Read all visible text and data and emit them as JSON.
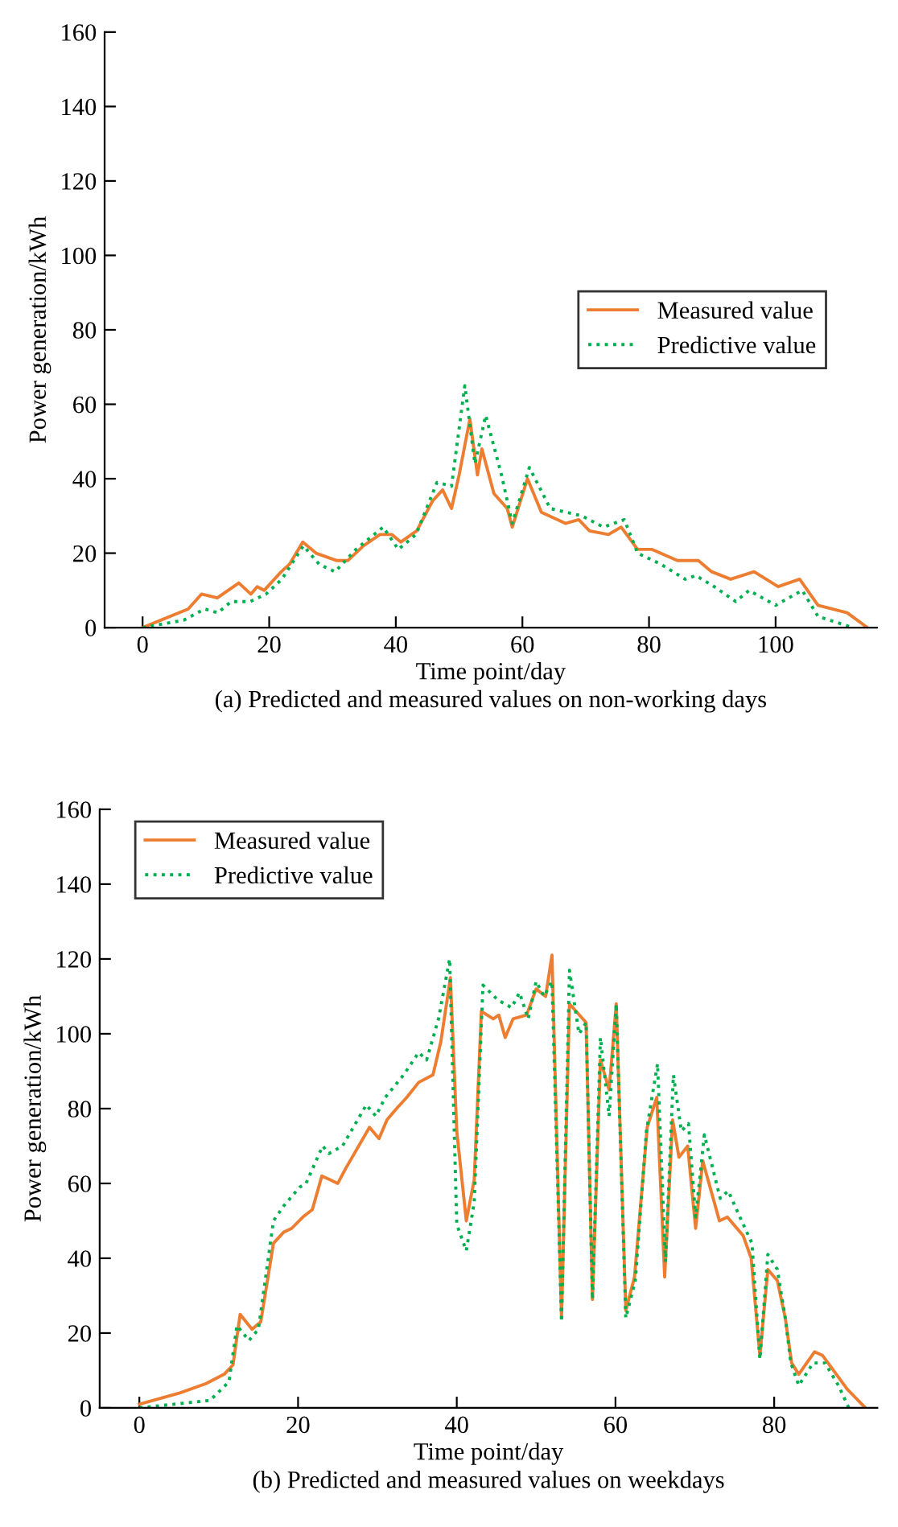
{
  "chart_data": [
    {
      "type": "line",
      "xlabel": "Time point/day",
      "ylabel": "Power generation/kWh",
      "annotations": [
        "(a) Predicted and measured values on non-working days"
      ],
      "xlim": [
        -6,
        116
      ],
      "ylim": [
        0,
        160
      ],
      "xticks": [
        0,
        20,
        40,
        60,
        80,
        100
      ],
      "yticks": [
        0,
        20,
        40,
        60,
        80,
        100,
        120,
        140,
        160
      ],
      "grid": false,
      "legend": "center right",
      "series": [
        {
          "name": "Measured value",
          "color": "#ed7d31",
          "line_style": "solid",
          "x": [
            0,
            7.2,
            9.3,
            11.8,
            15.2,
            17.1,
            18.1,
            19.2,
            21.9,
            23.2,
            25.3,
            27.4,
            30.7,
            32.4,
            34.9,
            37.5,
            39.4,
            40.8,
            43.3,
            45.8,
            47.4,
            48.8,
            50,
            51.7,
            52.9,
            53.6,
            55.5,
            57.6,
            58.4,
            60.8,
            63,
            66.8,
            68.9,
            70.6,
            73.6,
            75.6,
            78.2,
            80.5,
            84.5,
            87.8,
            89.9,
            92.9,
            96.6,
            100.4,
            103.8,
            106.7,
            111.3,
            114.5
          ],
          "values": [
            0,
            5,
            9,
            8,
            12,
            9,
            11,
            10,
            15,
            17,
            23,
            20,
            18,
            18,
            22,
            25,
            25,
            23,
            26,
            34,
            37,
            32,
            41,
            56,
            41,
            48,
            36,
            32,
            27,
            40,
            31,
            28,
            29,
            26,
            25,
            27,
            21,
            21,
            18,
            18,
            15,
            13,
            15,
            11,
            13,
            6,
            4,
            0
          ]
        },
        {
          "name": "Predictive value",
          "color": "#00b050",
          "line_style": "dotted",
          "x": [
            0,
            6.5,
            9.8,
            11.9,
            14,
            17,
            19.5,
            22,
            25.4,
            27.9,
            30.4,
            33.7,
            38,
            40.4,
            43.2,
            46.5,
            48.8,
            50.9,
            52.5,
            54.2,
            56.7,
            58.4,
            61.1,
            64.4,
            69.4,
            72.8,
            76.1,
            78.2,
            81.9,
            85.7,
            87.4,
            90.3,
            93.7,
            95.8,
            100,
            104.2,
            106.7,
            112.2
          ],
          "values": [
            0,
            2,
            5,
            4,
            7,
            7,
            9,
            13,
            22,
            17,
            15,
            21,
            27,
            21,
            25,
            39,
            38,
            65,
            44,
            57,
            41,
            28,
            43,
            32,
            30,
            27,
            29,
            20,
            17,
            13,
            14,
            11,
            7,
            10,
            6,
            10,
            3,
            0
          ]
        }
      ]
    },
    {
      "type": "line",
      "xlabel": "Time point/day",
      "ylabel": "Power generation/kWh",
      "annotations": [
        "(b) Predicted and measured values on weekdays"
      ],
      "xlim": [
        -5,
        93
      ],
      "ylim": [
        0,
        160
      ],
      "xticks": [
        0,
        20,
        40,
        60,
        80
      ],
      "yticks": [
        0,
        20,
        40,
        60,
        80,
        100,
        120,
        140,
        160
      ],
      "grid": false,
      "legend": "top left",
      "series": [
        {
          "name": "Measured value",
          "color": "#ed7d31",
          "line_style": "solid",
          "x": [
            0,
            5.1,
            8.4,
            10.7,
            11.8,
            12.7,
            14.2,
            15.3,
            16.9,
            18.2,
            19.2,
            20.6,
            21.8,
            23,
            24,
            25,
            26,
            29,
            30.2,
            31.2,
            32.4,
            33.7,
            35.2,
            37,
            38,
            39.2,
            40,
            41.2,
            42.2,
            43.1,
            44.6,
            45.3,
            46.1,
            47.1,
            48.8,
            50,
            51.2,
            52,
            53.2,
            54.2,
            56.3,
            57.1,
            58.1,
            59.2,
            60.1,
            61.3,
            62.4,
            64,
            65.2,
            66.2,
            67.2,
            68,
            69.1,
            70.1,
            71,
            73.1,
            74.1,
            76.1,
            77.1,
            78.2,
            79.2,
            80.4,
            81.4,
            82.2,
            83.1,
            85.1,
            86.1,
            89.2,
            91.5
          ],
          "values": [
            1,
            4,
            6.5,
            9,
            11.5,
            25,
            21,
            23,
            44,
            47,
            48,
            51,
            53,
            62,
            61,
            60,
            64,
            75,
            72,
            77,
            80,
            83,
            87,
            89,
            98,
            115,
            74,
            50,
            61,
            106,
            104,
            105,
            99,
            104,
            105,
            112,
            110,
            121,
            24,
            108,
            103,
            29,
            93,
            85,
            108,
            26,
            35,
            75,
            83,
            35,
            77,
            67,
            70,
            48,
            66,
            50,
            51,
            46,
            40,
            14,
            37,
            34,
            24,
            12,
            9,
            15,
            14,
            5,
            0
          ]
        },
        {
          "name": "Predictive value",
          "color": "#00b050",
          "line_style": "dotted",
          "x": [
            0,
            8.9,
            11.3,
            12.3,
            13.8,
            15,
            16.9,
            18.2,
            20.2,
            21,
            23.1,
            23.9,
            25.6,
            28.6,
            29.8,
            31,
            33.3,
            35.2,
            36.2,
            37.7,
            39.1,
            40,
            41.2,
            42.2,
            43.3,
            45.2,
            46.9,
            47.9,
            49,
            50,
            51,
            52,
            53.2,
            54.2,
            55.4,
            56.3,
            57.1,
            58.1,
            59.2,
            60.1,
            61.3,
            62.5,
            63.9,
            65.3,
            66.3,
            67.3,
            68.3,
            69.2,
            70.1,
            71.2,
            73.2,
            74.2,
            75.9,
            77.2,
            78.2,
            79.2,
            80.4,
            81.4,
            82.1,
            83.1,
            84.9,
            86.4,
            88.1,
            89.4
          ],
          "values": [
            0,
            2,
            7,
            22,
            18,
            21,
            50,
            54,
            59,
            60,
            70,
            68,
            70,
            81,
            78,
            83,
            89,
            95,
            93,
            104,
            120,
            49,
            42,
            55,
            113,
            109,
            107,
            111,
            104,
            114,
            110,
            114,
            23,
            117,
            100,
            103,
            29,
            99,
            78,
            108,
            24,
            34,
            74,
            92,
            39,
            89,
            74,
            76,
            51,
            73,
            56,
            58,
            50,
            44,
            13,
            41,
            37,
            24,
            12,
            6,
            12,
            12,
            6,
            0
          ]
        }
      ]
    }
  ]
}
